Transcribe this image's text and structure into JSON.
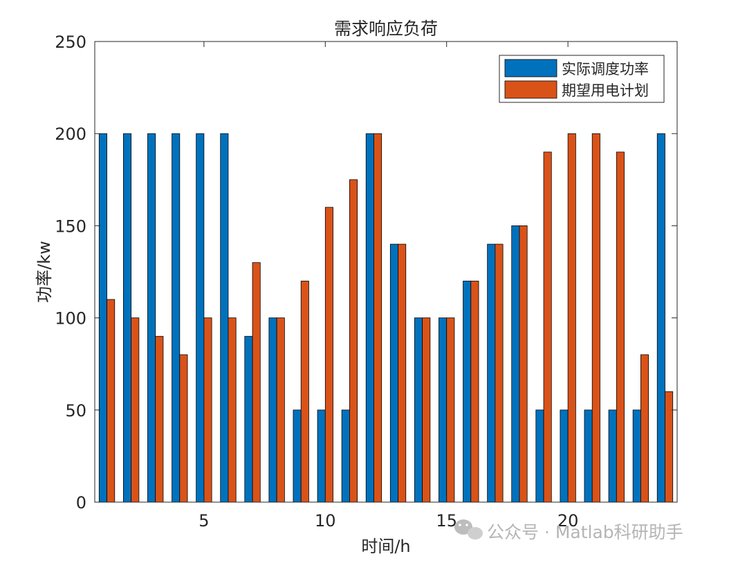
{
  "chart_data": {
    "type": "bar",
    "title": "需求响应负荷",
    "xlabel": "时间/h",
    "ylabel": "功率/kw",
    "categories": [
      1,
      2,
      3,
      4,
      5,
      6,
      7,
      8,
      9,
      10,
      11,
      12,
      13,
      14,
      15,
      16,
      17,
      18,
      19,
      20,
      21,
      22,
      23,
      24
    ],
    "xlim": [
      0.5,
      24.5
    ],
    "xticks": [
      5,
      10,
      15,
      20
    ],
    "ylim": [
      0,
      250
    ],
    "yticks": [
      0,
      50,
      100,
      150,
      200,
      250
    ],
    "grid": false,
    "legend_position": "top-right",
    "series": [
      {
        "name": "实际调度功率",
        "color": "#0072BD",
        "values": [
          200,
          200,
          200,
          200,
          200,
          200,
          90,
          100,
          50,
          50,
          50,
          200,
          140,
          100,
          100,
          120,
          140,
          150,
          50,
          50,
          50,
          50,
          50,
          200
        ]
      },
      {
        "name": "期望用电计划",
        "color": "#D95319",
        "values": [
          110,
          100,
          90,
          80,
          100,
          100,
          130,
          100,
          120,
          160,
          175,
          200,
          140,
          100,
          100,
          120,
          140,
          150,
          190,
          200,
          200,
          190,
          80,
          60
        ]
      }
    ]
  },
  "watermark": "公众号 · Matlab科研助手"
}
